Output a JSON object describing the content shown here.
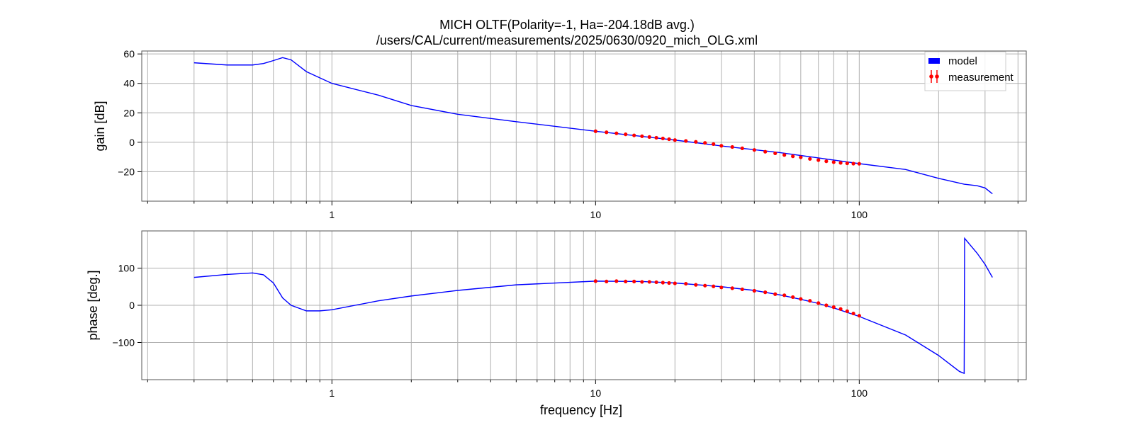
{
  "header": {
    "title_line1": "MICH OLTF(Polarity=-1,  Ha=-204.18dB avg.)",
    "title_line2": "/users/CAL/current/measurements/2025/0630/0920_mich_OLG.xml"
  },
  "colors": {
    "model": "#0000ff",
    "measurement": "#ff0000",
    "grid": "#b0b0b0",
    "axes": "#000000"
  },
  "chart_data": [
    {
      "type": "line",
      "name": "gain",
      "ylabel": "gain [dB]",
      "xlabel": "",
      "xscale": "log",
      "xlim": [
        0.19,
        430
      ],
      "ylim": [
        -40,
        62
      ],
      "grid": true,
      "yticks": [
        60,
        40,
        20,
        0,
        -20
      ],
      "ytick_labels": [
        "60",
        "40",
        "20",
        "0",
        "−20"
      ],
      "xticks": [
        1,
        10,
        100
      ],
      "xtick_labels": [
        "1",
        "10",
        "100"
      ],
      "legend": {
        "placement": "top-right",
        "entries": [
          "model",
          "measurement"
        ]
      },
      "series": [
        {
          "name": "model",
          "style": "line",
          "x": [
            0.3,
            0.4,
            0.5,
            0.55,
            0.6,
            0.65,
            0.7,
            0.8,
            1,
            1.5,
            2,
            3,
            5,
            10,
            20,
            30,
            50,
            100,
            150,
            200,
            250,
            280,
            300,
            320
          ],
          "y": [
            54,
            52.5,
            52.5,
            53.5,
            55.5,
            57.5,
            56,
            48,
            40,
            32,
            25,
            19,
            14,
            7.5,
            1.5,
            -2.5,
            -7,
            -14.5,
            -18.5,
            -24.5,
            -28.5,
            -29.5,
            -31,
            -35
          ]
        },
        {
          "name": "measurement",
          "style": "points",
          "x": [
            10,
            11,
            12,
            13,
            14,
            15,
            16,
            17,
            18,
            19,
            20,
            22,
            24,
            26,
            28,
            30,
            33,
            36,
            40,
            44,
            48,
            52,
            56,
            60,
            65,
            70,
            75,
            80,
            85,
            90,
            95,
            100
          ],
          "y": [
            7.5,
            6.8,
            6.1,
            5.4,
            4.7,
            4.1,
            3.6,
            3.1,
            2.6,
            2.1,
            1.5,
            0.9,
            0.3,
            -0.4,
            -1.2,
            -2.4,
            -3.2,
            -4.1,
            -5.2,
            -6.4,
            -7.5,
            -8.6,
            -9.5,
            -10.2,
            -11.3,
            -12.1,
            -12.9,
            -13.5,
            -14.0,
            -14.3,
            -14.5,
            -14.6
          ]
        }
      ]
    },
    {
      "type": "line",
      "name": "phase",
      "ylabel": "phase [deg.]",
      "xlabel": "frequency [Hz]",
      "xscale": "log",
      "xlim": [
        0.19,
        430
      ],
      "ylim": [
        -200,
        200
      ],
      "grid": true,
      "yticks": [
        100,
        0,
        -100
      ],
      "ytick_labels": [
        "100",
        "0",
        "−100"
      ],
      "xticks": [
        1,
        10,
        100
      ],
      "xtick_labels": [
        "1",
        "10",
        "100"
      ],
      "series": [
        {
          "name": "model",
          "style": "line",
          "x": [
            0.3,
            0.4,
            0.5,
            0.55,
            0.6,
            0.65,
            0.7,
            0.8,
            0.9,
            1,
            1.5,
            2,
            3,
            5,
            10,
            15,
            20,
            30,
            40,
            50,
            60,
            70,
            80,
            100,
            150,
            200,
            240,
            250,
            251,
            280,
            300,
            320
          ],
          "y": [
            75,
            83,
            87,
            82,
            60,
            20,
            0,
            -15,
            -15,
            -12,
            12,
            25,
            40,
            55,
            65,
            64,
            60,
            50,
            40,
            28,
            16,
            5,
            -7,
            -30,
            -80,
            -135,
            -178,
            -183,
            180,
            140,
            110,
            75
          ]
        },
        {
          "name": "measurement",
          "style": "points",
          "x": [
            10,
            11,
            12,
            13,
            14,
            15,
            16,
            17,
            18,
            19,
            20,
            22,
            24,
            26,
            28,
            30,
            33,
            36,
            40,
            44,
            48,
            52,
            56,
            60,
            65,
            70,
            75,
            80,
            85,
            90,
            95,
            100
          ],
          "y": [
            65,
            64,
            65,
            64,
            64,
            63,
            63,
            62,
            61,
            60,
            59,
            58,
            55,
            53,
            51,
            48,
            46,
            43,
            39,
            35,
            30,
            27,
            22,
            17,
            12,
            6,
            0,
            -5,
            -10,
            -16,
            -22,
            -28
          ]
        }
      ]
    }
  ]
}
